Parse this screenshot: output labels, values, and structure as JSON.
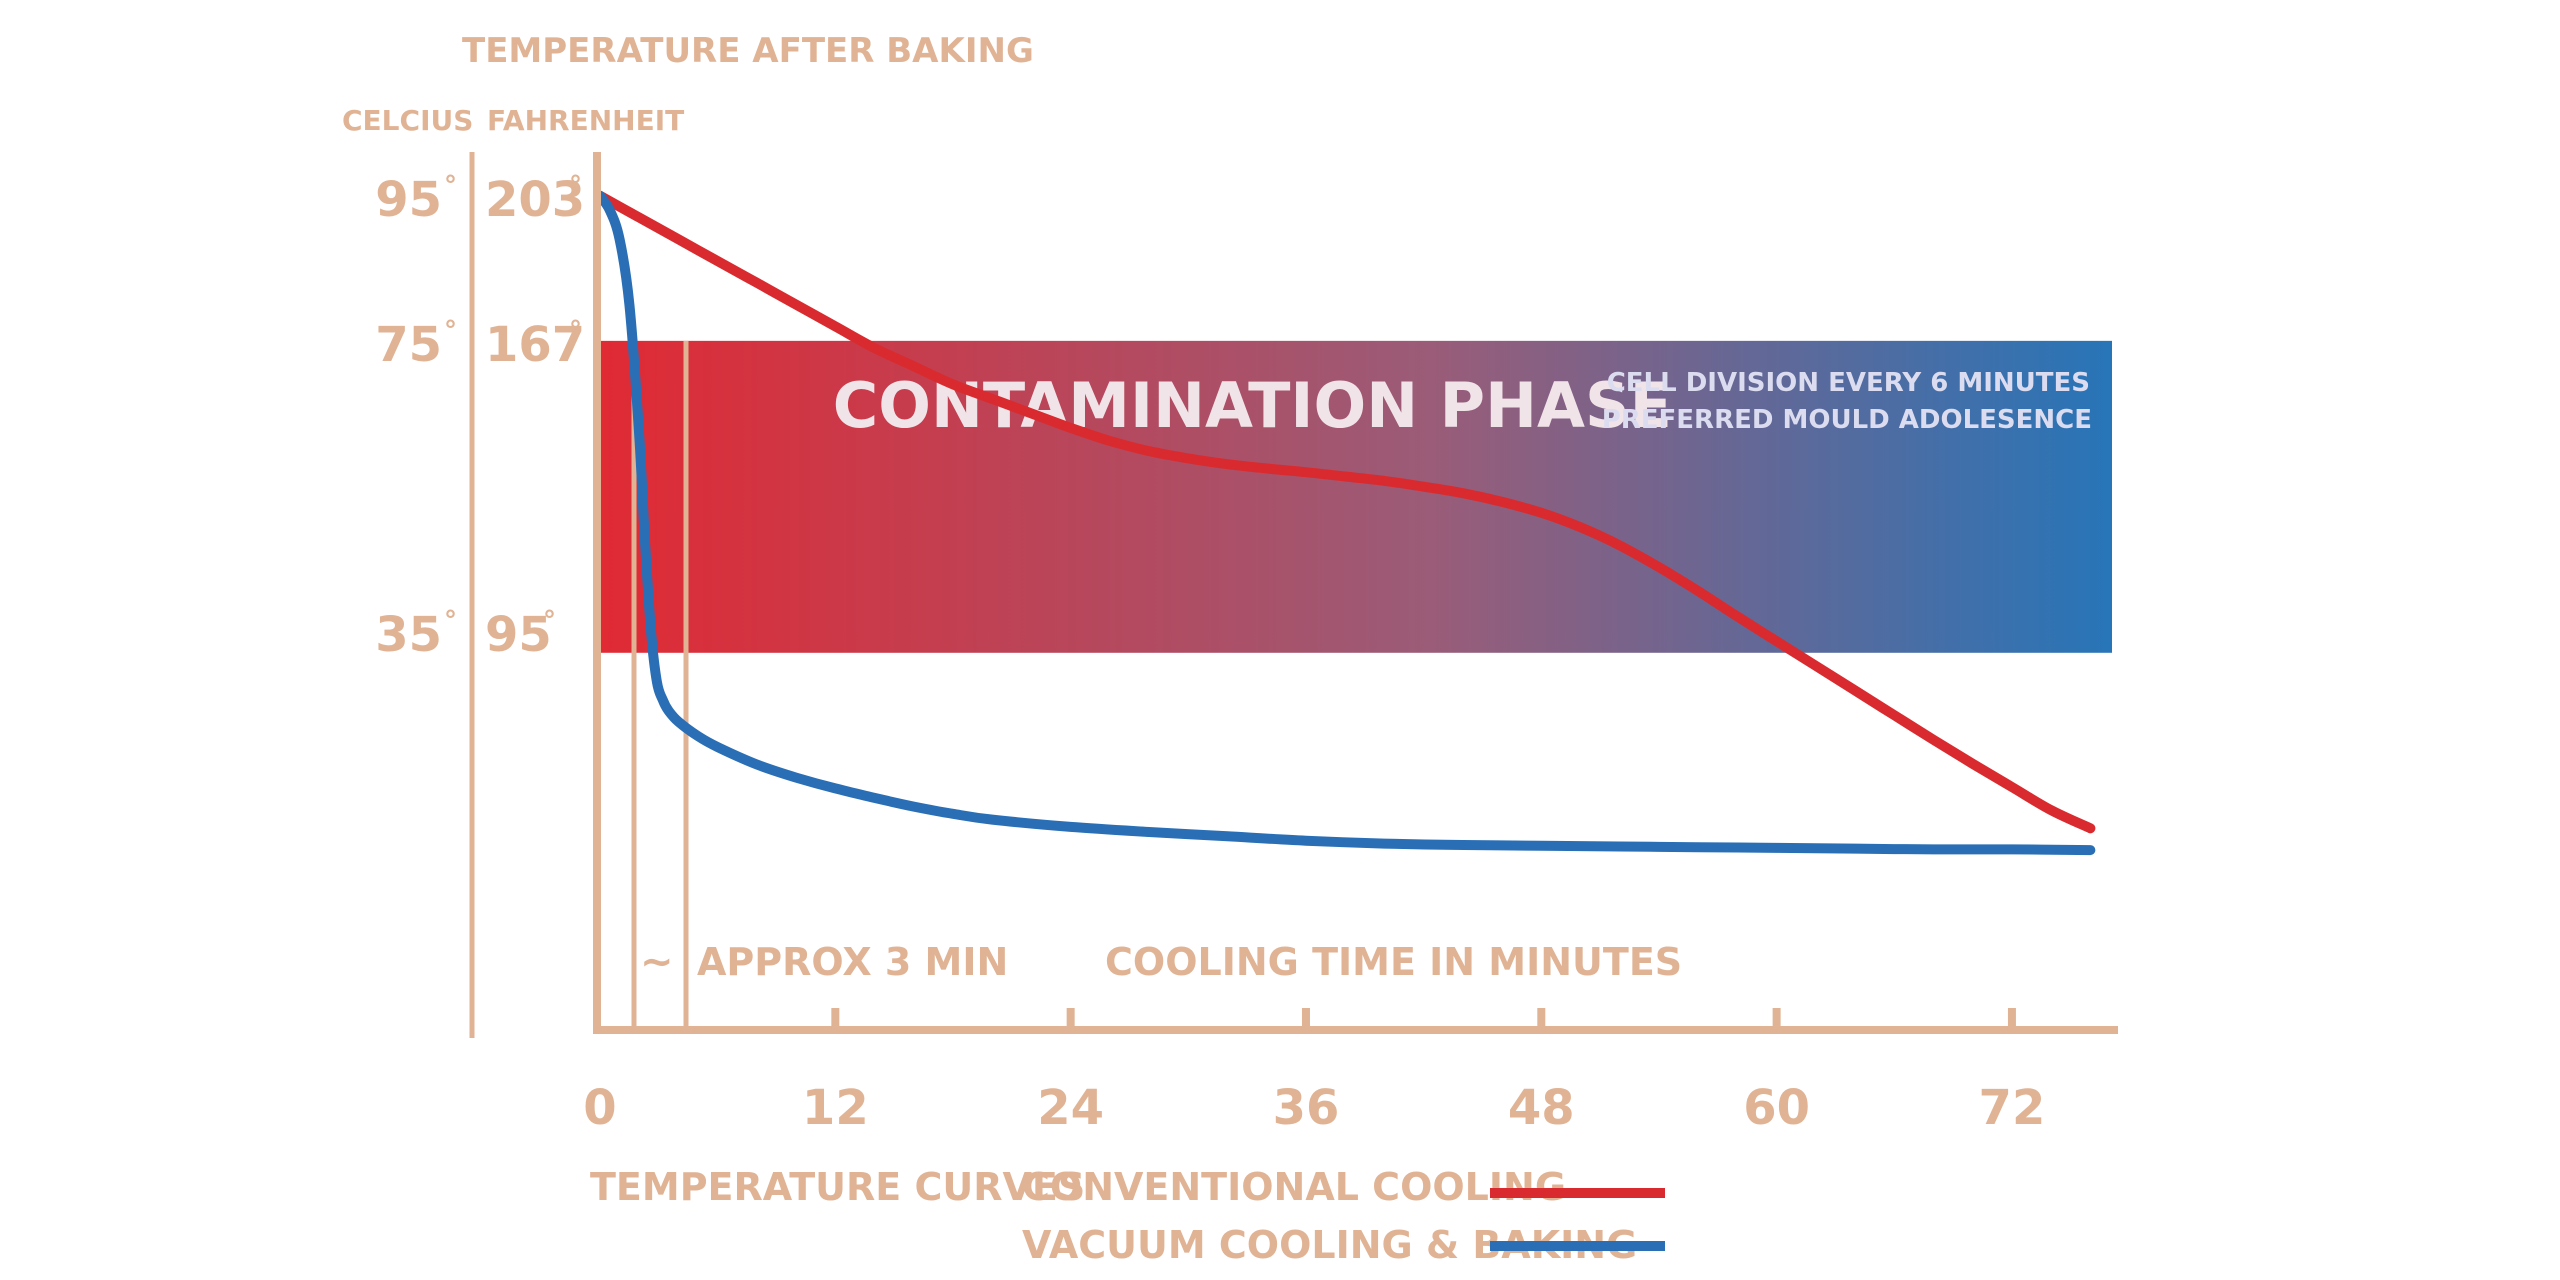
{
  "chart_data": {
    "type": "line",
    "title": "TEMPERATURE AFTER BAKING",
    "xlabel": "COOLING TIME IN MINUTES",
    "x_ticks": [
      "0",
      "12",
      "24",
      "36",
      "48",
      "60",
      "72"
    ],
    "x_tick_values": [
      0,
      12,
      24,
      36,
      48,
      60,
      72
    ],
    "xlim": [
      0,
      77
    ],
    "y_axis_celsius_label": "CELCIUS",
    "y_axis_fahrenheit_label": "FAHRENHEIT",
    "y_ticks_celsius": [
      "95",
      "75",
      "35"
    ],
    "y_ticks_fahrenheit": [
      "203",
      "167",
      "95"
    ],
    "y_tick_values": [
      95,
      75,
      35
    ],
    "ylim": [
      -20,
      102
    ],
    "degree_symbol": "°",
    "contamination_band": {
      "y_range": [
        32,
        75
      ],
      "title": "CONTAMINATION PHASE",
      "note_line1": "CELL DIVISION EVERY 6 MINUTES",
      "note_line2": "PREFERRED MOULD ADOLESENCE",
      "color_start": "#e02a34",
      "color_end": "#2775b8"
    },
    "annotation": {
      "tilde": "~",
      "text": "APPROX 3 MIN",
      "x_range": [
        2,
        4.5
      ]
    },
    "legend_title": "TEMPERATURE CURVES",
    "series": [
      {
        "name": "CONVENTIONAL COOLING",
        "color": "#d92b2f",
        "x": [
          0,
          2,
          4,
          6,
          8,
          10,
          12,
          14,
          16,
          18,
          20,
          22,
          24,
          26,
          28,
          30,
          32,
          34,
          36,
          38,
          40,
          42,
          44,
          46,
          48,
          50,
          52,
          54,
          56,
          58,
          60,
          62,
          64,
          66,
          68,
          70,
          72,
          74,
          76
        ],
        "y": [
          95,
          92,
          89,
          86,
          83,
          80,
          77,
          74,
          71.5,
          69,
          67,
          65,
          63,
          61.2,
          59.8,
          58.8,
          58,
          57.4,
          56.9,
          56.3,
          55.7,
          54.9,
          54,
          52.8,
          51.3,
          49.3,
          46.8,
          43.8,
          40.5,
          37,
          33.6,
          30.2,
          26.8,
          23.4,
          20,
          16.7,
          13.5,
          10.3,
          7.8
        ]
      },
      {
        "name": "VACUUM COOLING & BAKING",
        "color": "#2a6fb5",
        "x": [
          0,
          0.5,
          1,
          1.5,
          2,
          2.3,
          2.6,
          2.9,
          3.2,
          3.5,
          4,
          5,
          6,
          8,
          10,
          12,
          14,
          16,
          18,
          20,
          24,
          28,
          32,
          36,
          40,
          44,
          48,
          52,
          56,
          60,
          64,
          68,
          72,
          76
        ],
        "y": [
          95,
          93,
          89,
          80,
          62,
          47,
          35,
          28,
          25.5,
          24,
          22.5,
          20.5,
          19,
          16.6,
          14.8,
          13.3,
          12,
          10.8,
          9.8,
          9,
          8,
          7.3,
          6.7,
          6.1,
          5.7,
          5.5,
          5.4,
          5.3,
          5.2,
          5.1,
          5.0,
          4.9,
          4.9,
          4.8
        ]
      }
    ]
  }
}
